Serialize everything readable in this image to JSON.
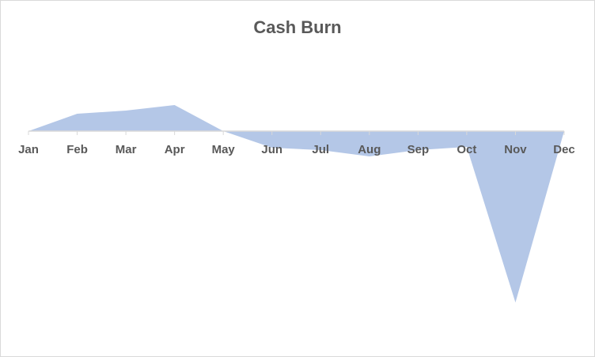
{
  "chart_data": {
    "type": "area",
    "title": "Cash Burn",
    "categories": [
      "Jan",
      "Feb",
      "Mar",
      "Apr",
      "May",
      "Jun",
      "Jul",
      "Aug",
      "Sep",
      "Oct",
      "Nov",
      "Dec"
    ],
    "values": [
      0,
      22,
      26,
      33,
      0,
      -21,
      -24,
      -32,
      -24,
      -20,
      -217,
      0
    ],
    "color": "#b4c7e7",
    "ylim": [
      -230,
      80
    ]
  }
}
